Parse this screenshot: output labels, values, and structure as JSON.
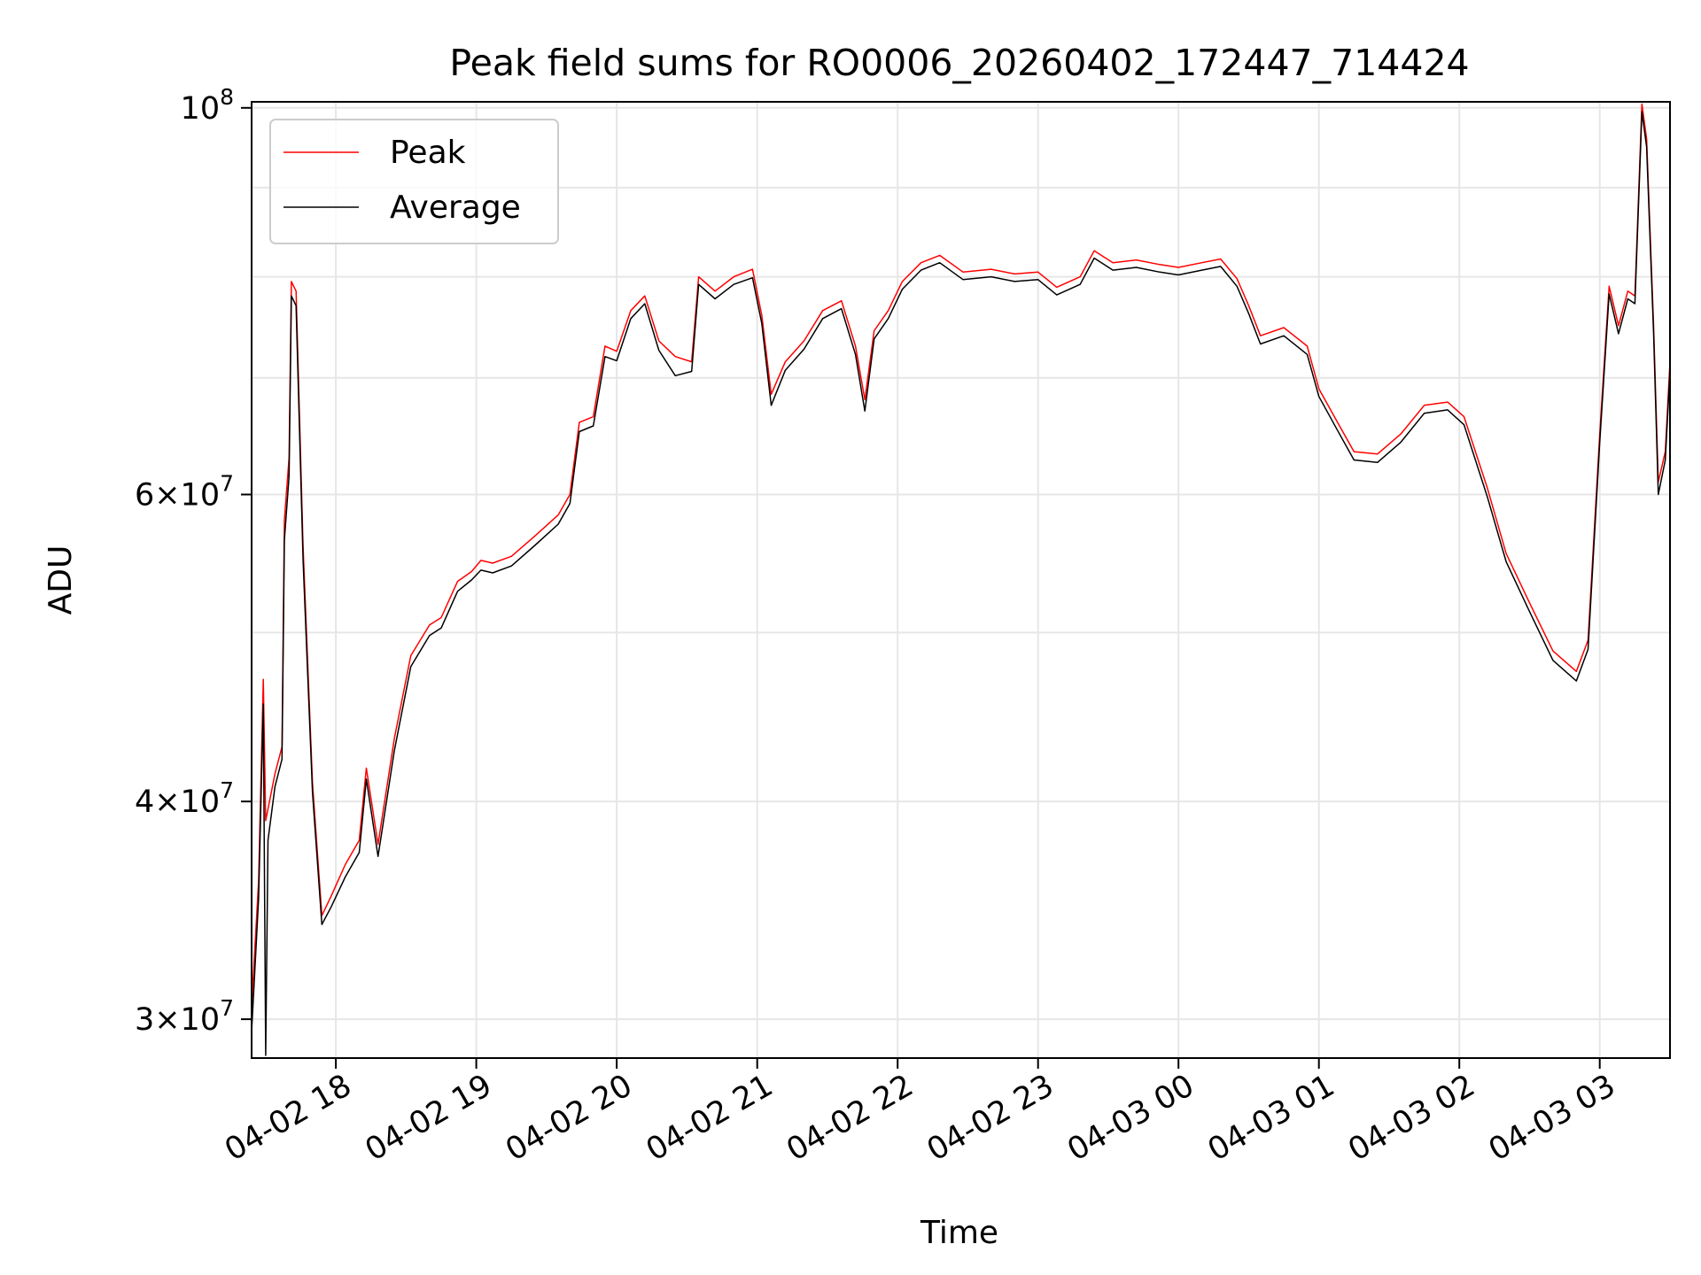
{
  "chart_data": {
    "type": "line",
    "title": "Peak field sums for RO0006_20260402_172447_714424",
    "xlabel": "Time",
    "ylabel": "ADU",
    "yscale": "log",
    "ylim": [
      28500000,
      100800000
    ],
    "xlim": [
      "2026-04-02 17:24",
      "2026-04-03 03:30"
    ],
    "grid": true,
    "legend_position": "upper-left",
    "x_ticks": [
      {
        "value": "2026-04-02 18:00",
        "label": "04-02 18"
      },
      {
        "value": "2026-04-02 19:00",
        "label": "04-02 19"
      },
      {
        "value": "2026-04-02 20:00",
        "label": "04-02 20"
      },
      {
        "value": "2026-04-02 21:00",
        "label": "04-02 21"
      },
      {
        "value": "2026-04-02 22:00",
        "label": "04-02 22"
      },
      {
        "value": "2026-04-02 23:00",
        "label": "04-02 23"
      },
      {
        "value": "2026-04-03 00:00",
        "label": "04-03 00"
      },
      {
        "value": "2026-04-03 01:00",
        "label": "04-03 01"
      },
      {
        "value": "2026-04-03 02:00",
        "label": "04-03 02"
      },
      {
        "value": "2026-04-03 03:00",
        "label": "04-03 03"
      }
    ],
    "y_ticks": [
      {
        "value": 30000000,
        "mantissa": "3",
        "exponent": "7"
      },
      {
        "value": 40000000,
        "mantissa": "4",
        "exponent": "7"
      },
      {
        "value": 60000000,
        "mantissa": "6",
        "exponent": "7"
      },
      {
        "value": 100000000,
        "mantissa": "",
        "exponent": "8"
      }
    ],
    "y_gridlines": [
      30000000,
      40000000,
      50000000,
      60000000,
      70000000,
      80000000,
      90000000,
      100000000
    ],
    "series": [
      {
        "name": "Peak",
        "color": "#ff0000",
        "points": [
          [
            "2026-04-02 17:24",
            30500000
          ],
          [
            "2026-04-02 17:27",
            36000000
          ],
          [
            "2026-04-02 17:29",
            47000000
          ],
          [
            "2026-04-02 17:30",
            39000000
          ],
          [
            "2026-04-02 17:34",
            41500000
          ],
          [
            "2026-04-02 17:37",
            43000000
          ],
          [
            "2026-04-02 17:38",
            58000000
          ],
          [
            "2026-04-02 17:40",
            63000000
          ],
          [
            "2026-04-02 17:41",
            79500000
          ],
          [
            "2026-04-02 17:43",
            78500000
          ],
          [
            "2026-04-02 17:46",
            56000000
          ],
          [
            "2026-04-02 17:50",
            41000000
          ],
          [
            "2026-04-02 17:54",
            34400000
          ],
          [
            "2026-04-02 17:58",
            35300000
          ],
          [
            "2026-04-02 18:04",
            36800000
          ],
          [
            "2026-04-02 18:10",
            38000000
          ],
          [
            "2026-04-02 18:13",
            41800000
          ],
          [
            "2026-04-02 18:18",
            37800000
          ],
          [
            "2026-04-02 18:25",
            43500000
          ],
          [
            "2026-04-02 18:32",
            48500000
          ],
          [
            "2026-04-02 18:40",
            50500000
          ],
          [
            "2026-04-02 18:45",
            51000000
          ],
          [
            "2026-04-02 18:52",
            53500000
          ],
          [
            "2026-04-02 18:58",
            54200000
          ],
          [
            "2026-04-02 19:02",
            55000000
          ],
          [
            "2026-04-02 19:07",
            54800000
          ],
          [
            "2026-04-02 19:15",
            55300000
          ],
          [
            "2026-04-02 19:25",
            56800000
          ],
          [
            "2026-04-02 19:35",
            58400000
          ],
          [
            "2026-04-02 19:40",
            60000000
          ],
          [
            "2026-04-02 19:44",
            66000000
          ],
          [
            "2026-04-02 19:50",
            66500000
          ],
          [
            "2026-04-02 19:55",
            73000000
          ],
          [
            "2026-04-02 20:00",
            72500000
          ],
          [
            "2026-04-02 20:06",
            76500000
          ],
          [
            "2026-04-02 20:12",
            78000000
          ],
          [
            "2026-04-02 20:18",
            73500000
          ],
          [
            "2026-04-02 20:25",
            72000000
          ],
          [
            "2026-04-02 20:32",
            71500000
          ],
          [
            "2026-04-02 20:35",
            80000000
          ],
          [
            "2026-04-02 20:42",
            78500000
          ],
          [
            "2026-04-02 20:50",
            80000000
          ],
          [
            "2026-04-02 20:58",
            80800000
          ],
          [
            "2026-04-02 21:02",
            76000000
          ],
          [
            "2026-04-02 21:06",
            68500000
          ],
          [
            "2026-04-02 21:12",
            71500000
          ],
          [
            "2026-04-02 21:20",
            73500000
          ],
          [
            "2026-04-02 21:28",
            76500000
          ],
          [
            "2026-04-02 21:36",
            77500000
          ],
          [
            "2026-04-02 21:42",
            73000000
          ],
          [
            "2026-04-02 21:46",
            68000000
          ],
          [
            "2026-04-02 21:50",
            74500000
          ],
          [
            "2026-04-02 21:56",
            76500000
          ],
          [
            "2026-04-02 22:02",
            79500000
          ],
          [
            "2026-04-02 22:10",
            81500000
          ],
          [
            "2026-04-02 22:18",
            82300000
          ],
          [
            "2026-04-02 22:28",
            80500000
          ],
          [
            "2026-04-02 22:40",
            80800000
          ],
          [
            "2026-04-02 22:50",
            80300000
          ],
          [
            "2026-04-02 23:00",
            80500000
          ],
          [
            "2026-04-02 23:08",
            78900000
          ],
          [
            "2026-04-02 23:18",
            80000000
          ],
          [
            "2026-04-02 23:24",
            82800000
          ],
          [
            "2026-04-02 23:32",
            81500000
          ],
          [
            "2026-04-02 23:42",
            81800000
          ],
          [
            "2026-04-02 23:52",
            81300000
          ],
          [
            "2026-04-03 00:00",
            81000000
          ],
          [
            "2026-04-03 00:10",
            81500000
          ],
          [
            "2026-04-03 00:18",
            81900000
          ],
          [
            "2026-04-03 00:25",
            79800000
          ],
          [
            "2026-04-03 00:30",
            77000000
          ],
          [
            "2026-04-03 00:35",
            74000000
          ],
          [
            "2026-04-03 00:45",
            74800000
          ],
          [
            "2026-04-03 00:55",
            73000000
          ],
          [
            "2026-04-03 01:00",
            69000000
          ],
          [
            "2026-04-03 01:08",
            66000000
          ],
          [
            "2026-04-03 01:15",
            63500000
          ],
          [
            "2026-04-03 01:25",
            63300000
          ],
          [
            "2026-04-03 01:35",
            65000000
          ],
          [
            "2026-04-03 01:45",
            67500000
          ],
          [
            "2026-04-03 01:55",
            67800000
          ],
          [
            "2026-04-03 02:02",
            66500000
          ],
          [
            "2026-04-03 02:12",
            60500000
          ],
          [
            "2026-04-03 02:20",
            55500000
          ],
          [
            "2026-04-03 02:30",
            52000000
          ],
          [
            "2026-04-03 02:40",
            48800000
          ],
          [
            "2026-04-03 02:50",
            47500000
          ],
          [
            "2026-04-03 02:55",
            49500000
          ],
          [
            "2026-04-03 03:00",
            65000000
          ],
          [
            "2026-04-03 03:04",
            79000000
          ],
          [
            "2026-04-03 03:08",
            75000000
          ],
          [
            "2026-04-03 03:12",
            78500000
          ],
          [
            "2026-04-03 03:15",
            78000000
          ],
          [
            "2026-04-03 03:18",
            100500000
          ],
          [
            "2026-04-03 03:20",
            96000000
          ],
          [
            "2026-04-03 03:23",
            75000000
          ],
          [
            "2026-04-03 03:25",
            61000000
          ],
          [
            "2026-04-03 03:28",
            63500000
          ],
          [
            "2026-04-03 03:30",
            71500000
          ]
        ]
      },
      {
        "name": "Average",
        "color": "#000000",
        "points": [
          [
            "2026-04-02 17:24",
            29500000
          ],
          [
            "2026-04-02 17:27",
            35200000
          ],
          [
            "2026-04-02 17:29",
            45500000
          ],
          [
            "2026-04-02 17:30",
            28600000
          ],
          [
            "2026-04-02 17:31",
            38000000
          ],
          [
            "2026-04-02 17:34",
            40800000
          ],
          [
            "2026-04-02 17:37",
            42300000
          ],
          [
            "2026-04-02 17:38",
            56500000
          ],
          [
            "2026-04-02 17:40",
            61500000
          ],
          [
            "2026-04-02 17:41",
            78000000
          ],
          [
            "2026-04-02 17:43",
            77000000
          ],
          [
            "2026-04-02 17:46",
            55000000
          ],
          [
            "2026-04-02 17:50",
            40500000
          ],
          [
            "2026-04-02 17:54",
            34000000
          ],
          [
            "2026-04-02 17:58",
            34800000
          ],
          [
            "2026-04-02 18:04",
            36200000
          ],
          [
            "2026-04-02 18:10",
            37400000
          ],
          [
            "2026-04-02 18:13",
            41200000
          ],
          [
            "2026-04-02 18:18",
            37200000
          ],
          [
            "2026-04-02 18:25",
            42800000
          ],
          [
            "2026-04-02 18:32",
            47800000
          ],
          [
            "2026-04-02 18:40",
            49800000
          ],
          [
            "2026-04-02 18:45",
            50300000
          ],
          [
            "2026-04-02 18:52",
            52800000
          ],
          [
            "2026-04-02 18:58",
            53600000
          ],
          [
            "2026-04-02 19:02",
            54300000
          ],
          [
            "2026-04-02 19:07",
            54100000
          ],
          [
            "2026-04-02 19:15",
            54600000
          ],
          [
            "2026-04-02 19:25",
            56100000
          ],
          [
            "2026-04-02 19:35",
            57700000
          ],
          [
            "2026-04-02 19:40",
            59300000
          ],
          [
            "2026-04-02 19:44",
            65200000
          ],
          [
            "2026-04-02 19:50",
            65700000
          ],
          [
            "2026-04-02 19:55",
            72000000
          ],
          [
            "2026-04-02 20:00",
            71600000
          ],
          [
            "2026-04-02 20:06",
            75700000
          ],
          [
            "2026-04-02 20:12",
            77200000
          ],
          [
            "2026-04-02 20:18",
            72600000
          ],
          [
            "2026-04-02 20:25",
            70200000
          ],
          [
            "2026-04-02 20:32",
            70600000
          ],
          [
            "2026-04-02 20:35",
            79200000
          ],
          [
            "2026-04-02 20:42",
            77700000
          ],
          [
            "2026-04-02 20:50",
            79200000
          ],
          [
            "2026-04-02 20:58",
            79900000
          ],
          [
            "2026-04-02 21:02",
            75200000
          ],
          [
            "2026-04-02 21:06",
            67500000
          ],
          [
            "2026-04-02 21:12",
            70700000
          ],
          [
            "2026-04-02 21:20",
            72700000
          ],
          [
            "2026-04-02 21:28",
            75700000
          ],
          [
            "2026-04-02 21:36",
            76700000
          ],
          [
            "2026-04-02 21:42",
            72200000
          ],
          [
            "2026-04-02 21:46",
            67000000
          ],
          [
            "2026-04-02 21:50",
            73700000
          ],
          [
            "2026-04-02 21:56",
            75700000
          ],
          [
            "2026-04-02 22:02",
            78700000
          ],
          [
            "2026-04-02 22:10",
            80700000
          ],
          [
            "2026-04-02 22:18",
            81500000
          ],
          [
            "2026-04-02 22:28",
            79700000
          ],
          [
            "2026-04-02 22:40",
            80000000
          ],
          [
            "2026-04-02 22:50",
            79500000
          ],
          [
            "2026-04-02 23:00",
            79700000
          ],
          [
            "2026-04-02 23:08",
            78100000
          ],
          [
            "2026-04-02 23:18",
            79200000
          ],
          [
            "2026-04-02 23:24",
            82000000
          ],
          [
            "2026-04-02 23:32",
            80700000
          ],
          [
            "2026-04-02 23:42",
            81000000
          ],
          [
            "2026-04-02 23:52",
            80500000
          ],
          [
            "2026-04-03 00:00",
            80200000
          ],
          [
            "2026-04-03 00:10",
            80700000
          ],
          [
            "2026-04-03 00:18",
            81100000
          ],
          [
            "2026-04-03 00:25",
            79000000
          ],
          [
            "2026-04-03 00:30",
            76200000
          ],
          [
            "2026-04-03 00:35",
            73200000
          ],
          [
            "2026-04-03 00:45",
            74000000
          ],
          [
            "2026-04-03 00:55",
            72200000
          ],
          [
            "2026-04-03 01:00",
            68300000
          ],
          [
            "2026-04-03 01:08",
            65300000
          ],
          [
            "2026-04-03 01:15",
            62800000
          ],
          [
            "2026-04-03 01:25",
            62600000
          ],
          [
            "2026-04-03 01:35",
            64300000
          ],
          [
            "2026-04-03 01:45",
            66800000
          ],
          [
            "2026-04-03 01:55",
            67100000
          ],
          [
            "2026-04-03 02:02",
            65800000
          ],
          [
            "2026-04-03 02:12",
            59800000
          ],
          [
            "2026-04-03 02:20",
            54900000
          ],
          [
            "2026-04-03 02:30",
            51400000
          ],
          [
            "2026-04-03 02:40",
            48200000
          ],
          [
            "2026-04-03 02:50",
            46900000
          ],
          [
            "2026-04-03 02:55",
            48900000
          ],
          [
            "2026-04-03 03:00",
            64300000
          ],
          [
            "2026-04-03 03:04",
            78200000
          ],
          [
            "2026-04-03 03:08",
            74200000
          ],
          [
            "2026-04-03 03:12",
            77700000
          ],
          [
            "2026-04-03 03:15",
            77200000
          ],
          [
            "2026-04-03 03:18",
            99500000
          ],
          [
            "2026-04-03 03:20",
            95000000
          ],
          [
            "2026-04-03 03:23",
            74200000
          ],
          [
            "2026-04-03 03:25",
            60000000
          ],
          [
            "2026-04-03 03:28",
            62800000
          ],
          [
            "2026-04-03 03:30",
            70700000
          ]
        ]
      }
    ]
  }
}
